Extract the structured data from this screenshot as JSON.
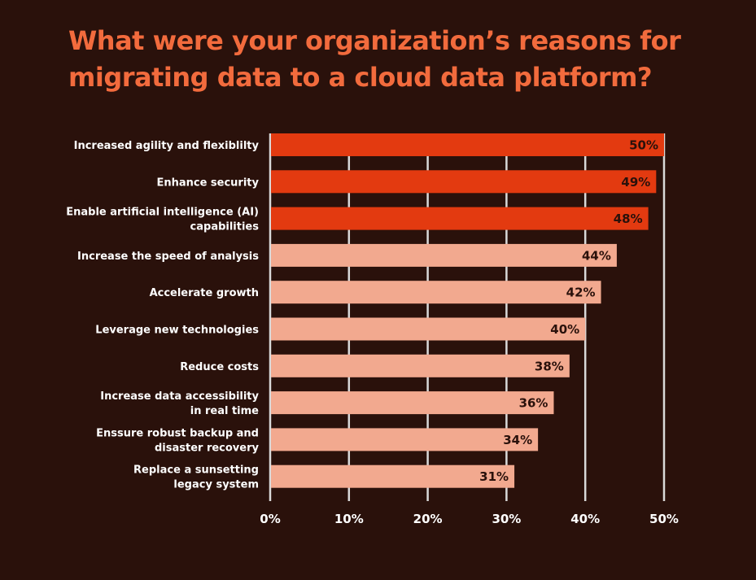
{
  "title": "What were your organization’s reasons for\nmigrating data to a cloud data platform?",
  "chart_data": {
    "type": "bar",
    "orientation": "horizontal",
    "title": "What were your organization’s reasons for migrating data to a cloud data platform?",
    "xlabel": "",
    "ylabel": "",
    "xlim": [
      0,
      50
    ],
    "x_ticks": [
      "0%",
      "10%",
      "20%",
      "30%",
      "40%",
      "50%"
    ],
    "grid": true,
    "categories": [
      "Increased agility and flexiblilty",
      "Enhance security",
      "Enable artificial intelligence (AI)\ncapabilities",
      "Increase the speed of analysis",
      "Accelerate growth",
      "Leverage new technologies",
      "Reduce costs",
      "Increase data accessibility\nin real time",
      "Enssure robust backup and\ndisaster recovery",
      "Replace a sunsetting\nlegacy system"
    ],
    "values": [
      50,
      49,
      48,
      44,
      42,
      40,
      38,
      36,
      34,
      31
    ],
    "value_labels": [
      "50%",
      "49%",
      "48%",
      "44%",
      "42%",
      "40%",
      "38%",
      "36%",
      "34%",
      "31%"
    ],
    "highlighted_top": 3,
    "colors": {
      "highlight": "#e33a10",
      "normal": "#f2a98f",
      "grid": "#d9d9d9",
      "background": "#2a110b",
      "title": "#f26b3d",
      "text": "#ffffff",
      "bar_label": "#2a110b"
    }
  }
}
